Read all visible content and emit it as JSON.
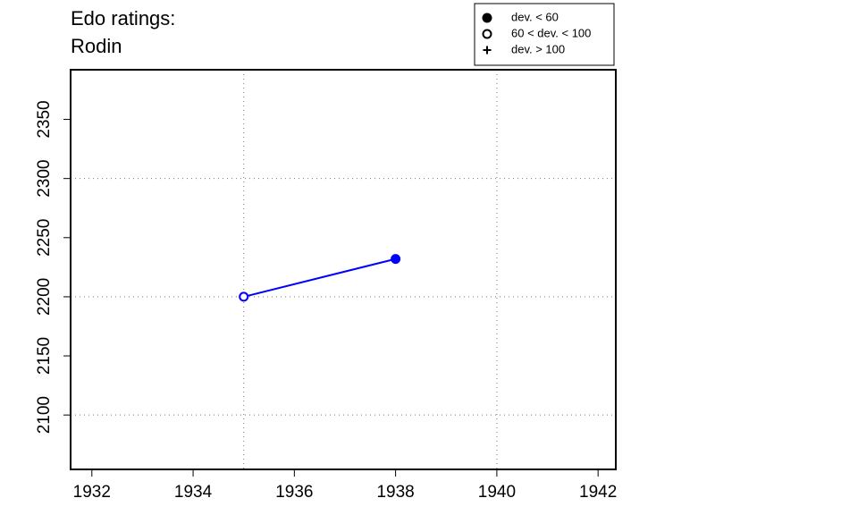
{
  "chart_data": {
    "type": "line",
    "title": "Edo ratings:",
    "subtitle": "Rodin",
    "x": [
      1935,
      1938
    ],
    "series": [
      {
        "name": "Rodin",
        "color": "#0000ff",
        "values": [
          2200,
          2232
        ],
        "markers": [
          "open",
          "filled"
        ]
      }
    ],
    "xlim": [
      1931.58,
      1942.35
    ],
    "ylim": [
      2054,
      2392
    ],
    "xticks": [
      1932,
      1934,
      1936,
      1938,
      1940,
      1942
    ],
    "yticks": [
      2100,
      2150,
      2200,
      2250,
      2300,
      2350
    ],
    "xgrid": [
      1935,
      1940
    ],
    "ygrid": [
      2100,
      2200,
      2300
    ],
    "legend": [
      {
        "label": "dev. < 60",
        "symbol": "filled"
      },
      {
        "label": "60 < dev. < 100",
        "symbol": "open"
      },
      {
        "label": "dev. > 100",
        "symbol": "plus"
      }
    ]
  }
}
